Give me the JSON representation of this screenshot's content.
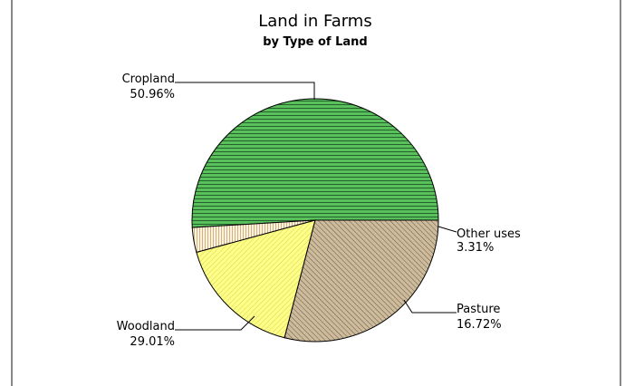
{
  "chart_data": {
    "type": "pie",
    "title": "Land in Farms",
    "subtitle": "by Type of Land",
    "slices": [
      {
        "label": "Cropland",
        "value": 50.96,
        "value_label": "50.96%",
        "color": "#58c15b",
        "hatch": "horizontal"
      },
      {
        "label": "Other uses",
        "value": 3.31,
        "value_label": "3.31%",
        "color": "#fff3dd",
        "hatch": "vertical"
      },
      {
        "label": "Pasture",
        "value": 16.72,
        "value_label": "16.72%",
        "color": "#ffff88",
        "hatch": "diagonal-right"
      },
      {
        "label": "Woodland",
        "value": 29.01,
        "value_label": "29.01%",
        "color": "#cdbb9b",
        "hatch": "diagonal-left"
      }
    ],
    "start_angle_degrees": 0,
    "direction": "counterclockwise",
    "legend": "none"
  }
}
